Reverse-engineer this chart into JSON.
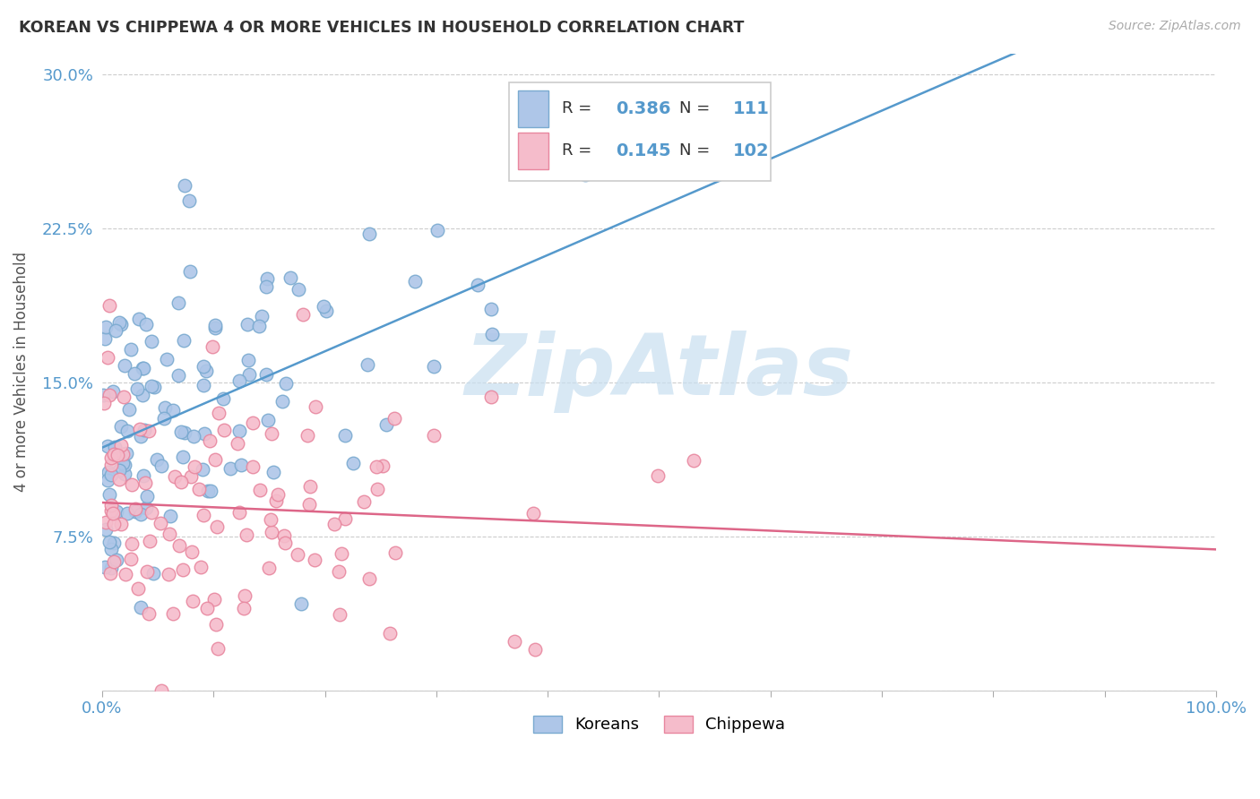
{
  "title": "KOREAN VS CHIPPEWA 4 OR MORE VEHICLES IN HOUSEHOLD CORRELATION CHART",
  "source": "Source: ZipAtlas.com",
  "ylabel": "4 or more Vehicles in Household",
  "xlim": [
    0.0,
    1.0
  ],
  "ylim": [
    0.0,
    0.31
  ],
  "korean_R": 0.386,
  "korean_N": 111,
  "chippewa_R": 0.145,
  "chippewa_N": 102,
  "korean_color": "#aec6e8",
  "korean_edge": "#7aaad0",
  "chippewa_color": "#f5bccb",
  "chippewa_edge": "#e8879f",
  "trend_korean_color": "#5599cc",
  "trend_chippewa_color": "#dd6688",
  "background_color": "#ffffff",
  "grid_color": "#cccccc",
  "ytick_vals": [
    0.0,
    0.075,
    0.15,
    0.225,
    0.3
  ],
  "ytick_labs": [
    "",
    "7.5%",
    "15.0%",
    "22.5%",
    "30.0%"
  ],
  "xtick_vals": [
    0.0,
    0.1,
    0.2,
    0.3,
    0.4,
    0.5,
    0.6,
    0.7,
    0.8,
    0.9,
    1.0
  ],
  "xtick_labs": [
    "0.0%",
    "",
    "",
    "",
    "",
    "",
    "",
    "",
    "",
    "",
    "100.0%"
  ],
  "tick_color": "#5599cc",
  "watermark_color": "#c8dff0",
  "title_color": "#333333",
  "source_color": "#aaaaaa",
  "legend_R_color": "#5599cc",
  "legend_N_color": "#5599cc",
  "legend_text_color": "#333333"
}
